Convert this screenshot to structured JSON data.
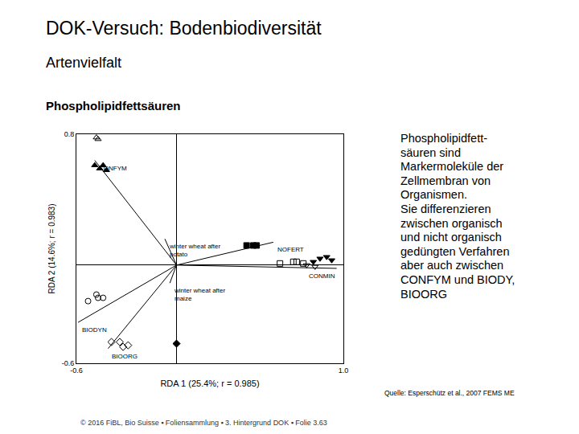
{
  "page": {
    "title": "DOK-Versuch: Bodenbiodiversität",
    "subtitle": "Artenvielfalt",
    "heading": "Phospholipidfettsäuren",
    "side_text": [
      [
        "Phospholipidfett-",
        "säuren sind",
        "Markermoleküle der",
        "Zellmembran von",
        "Organismen."
      ],
      [
        "Sie differenzieren",
        "zwischen organisch",
        "und nicht organisch",
        "gedüngten Verfahren",
        "aber auch zwischen",
        "CONFYM und BIODY,",
        "BIOORG"
      ]
    ],
    "source": "Quelle: Esperschütz et al., 2007 FEMS ME",
    "footer": "© 2016 FiBL, Bio Suisse ▪ Foliensammlung ▪ 3. Hintergrund DOK ▪ Folie 3.63"
  },
  "chart_data": {
    "type": "scatter",
    "x_label": "RDA 1 (25.4%; r = 0.985)",
    "y_label": "RDA 2 (14.6%; r = 0.983)",
    "xlim": [
      -0.6,
      1.0
    ],
    "ylim": [
      -0.6,
      0.8
    ],
    "xticks": [
      -0.6,
      {
        "value": 1.0,
        "label": "1.0"
      }
    ],
    "yticks": [
      -0.6,
      0.8
    ],
    "grid": false,
    "series": [
      {
        "color": "#000000",
        "marker": "triangle-up-open",
        "x": [
          -0.48,
          -0.47
        ],
        "values": [
          0.78,
          0.77
        ]
      },
      {
        "color": "#000000",
        "marker": "triangle-up",
        "x": [
          -0.49,
          -0.46,
          -0.44,
          -0.42
        ],
        "values": [
          0.61,
          0.59,
          0.61,
          0.58
        ]
      },
      {
        "color": "#000000",
        "marker": "square",
        "x": [
          0.42,
          0.46,
          0.48
        ],
        "values": [
          0.12,
          0.12,
          0.12
        ]
      },
      {
        "color": "#000000",
        "marker": "square-open",
        "x": [
          0.62,
          0.7,
          0.72,
          0.76
        ],
        "values": [
          0.01,
          0.02,
          0.02,
          0.01
        ]
      },
      {
        "color": "#000000",
        "marker": "triangle-down",
        "x": [
          0.82,
          0.86,
          0.9,
          0.93
        ],
        "values": [
          0.02,
          0.04,
          0.05,
          0.03
        ]
      },
      {
        "color": "#000000",
        "marker": "triangle-down-open",
        "x": [
          0.78,
          0.83
        ],
        "values": [
          0.0,
          -0.01
        ]
      },
      {
        "color": "#000000",
        "marker": "circle-open",
        "x": [
          -0.48,
          -0.47,
          -0.44,
          -0.53
        ],
        "values": [
          -0.18,
          -0.2,
          -0.2,
          -0.22
        ]
      },
      {
        "color": "#000000",
        "marker": "diamond-open",
        "x": [
          -0.39,
          -0.34,
          -0.29,
          -0.32
        ],
        "values": [
          -0.47,
          -0.47,
          -0.49,
          -0.5
        ]
      },
      {
        "color": "#000000",
        "marker": "diamond",
        "x": [
          0.0
        ],
        "values": [
          -0.48
        ]
      }
    ],
    "vectors": [
      {
        "label": "CONFYM",
        "x": -0.49,
        "y": 0.64
      },
      {
        "label": "winter wheat after\npotato",
        "x": -0.07,
        "y": 0.16
      },
      {
        "label": "NOFERT",
        "x": 0.58,
        "y": 0.14
      },
      {
        "label": "CONMIN",
        "x": 0.96,
        "y": -0.02
      },
      {
        "label": "winter wheat after\nmaize",
        "x": -0.04,
        "y": -0.11
      },
      {
        "label": "BIODYN",
        "x": -0.59,
        "y": -0.35
      },
      {
        "label": "BIOORG",
        "x": -0.41,
        "y": -0.51
      }
    ]
  }
}
